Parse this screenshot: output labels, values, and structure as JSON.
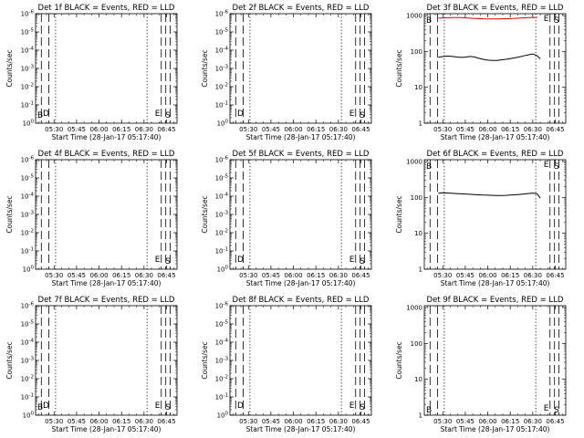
{
  "x_tick_labels": [
    "05:30",
    "05:45",
    "06:00",
    "06:15",
    "06:30",
    "06:45"
  ],
  "x_axis_label": "Start Time (28-Jan-17 05:17:40)",
  "y_axis_label": "Counts/sec",
  "markers": {
    "begin": "B",
    "dropout": "D",
    "end": "E",
    "start": "S"
  },
  "colors": {
    "events": "#000000",
    "lld": "#e00000"
  },
  "chart_data": [
    {
      "type": "line",
      "title": "Det 1f BLACK = Events, RED = LLD",
      "yscale": "log",
      "ytick_labels": [
        "10^0",
        "10^-1",
        "10^-2",
        "10^-3",
        "10^-4",
        "10^-5",
        "10^-6"
      ],
      "marks": [
        "B",
        "D",
        "E",
        "S"
      ],
      "series": []
    },
    {
      "type": "line",
      "title": "Det 2f BLACK = Events, RED = LLD",
      "yscale": "log",
      "ytick_labels": [
        "10^0",
        "10^-1",
        "10^-2",
        "10^-3",
        "10^-4",
        "10^-5",
        "10^-6"
      ],
      "marks": [
        "D",
        "E",
        "S"
      ],
      "series": []
    },
    {
      "type": "line",
      "title": "Det 3f BLACK = Events, RED = LLD",
      "yscale": "log",
      "ytick_labels": [
        "1",
        "10",
        "100",
        "1000"
      ],
      "marks": [
        "B",
        "E",
        "S"
      ],
      "series": [
        {
          "color": "#e00000",
          "x": [
            "05:27",
            "05:32",
            "05:37",
            "05:42",
            "05:47",
            "05:52",
            "05:57",
            "06:02",
            "06:07",
            "06:12",
            "06:17",
            "06:22",
            "06:27",
            "06:30",
            "06:33"
          ],
          "y": [
            840,
            860,
            880,
            870,
            850,
            830,
            810,
            800,
            805,
            815,
            830,
            850,
            870,
            880,
            890
          ]
        },
        {
          "color": "#000000",
          "x": [
            "05:27",
            "05:30",
            "05:33",
            "05:36",
            "05:39",
            "05:42",
            "05:45",
            "05:48",
            "05:51",
            "05:54",
            "05:57",
            "06:00",
            "06:03",
            "06:06",
            "06:09",
            "06:12",
            "06:15",
            "06:18",
            "06:21",
            "06:24",
            "06:27",
            "06:30",
            "06:33",
            "06:35"
          ],
          "y": [
            68,
            72,
            74,
            73,
            70,
            68,
            69,
            72,
            70,
            64,
            60,
            57,
            56,
            56,
            58,
            60,
            63,
            66,
            70,
            75,
            80,
            85,
            75,
            62
          ]
        }
      ]
    },
    {
      "type": "line",
      "title": "Det 4f BLACK = Events, RED = LLD",
      "yscale": "log",
      "ytick_labels": [
        "10^0",
        "10^-1",
        "10^-2",
        "10^-3",
        "10^-4",
        "10^-5",
        "10^-6"
      ],
      "marks": [
        "E",
        "S"
      ],
      "series": []
    },
    {
      "type": "line",
      "title": "Det 5f BLACK = Events, RED = LLD",
      "yscale": "log",
      "ytick_labels": [
        "10^0",
        "10^-1",
        "10^-2",
        "10^-3",
        "10^-4",
        "10^-5",
        "10^-6"
      ],
      "marks": [
        "D",
        "E",
        "S"
      ],
      "series": []
    },
    {
      "type": "line",
      "title": "Det 6f BLACK = Events, RED = LLD",
      "yscale": "log",
      "ytick_labels": [
        "1",
        "10",
        "100",
        "1000"
      ],
      "marks": [
        "B",
        "E",
        "S"
      ],
      "series": [
        {
          "color": "#000000",
          "x": [
            "05:27",
            "05:30",
            "05:33",
            "05:36",
            "05:39",
            "05:42",
            "05:45",
            "05:48",
            "05:51",
            "05:54",
            "05:57",
            "06:00",
            "06:03",
            "06:06",
            "06:09",
            "06:12",
            "06:15",
            "06:18",
            "06:21",
            "06:24",
            "06:27",
            "06:30",
            "06:33",
            "06:35"
          ],
          "y": [
            130,
            134,
            132,
            130,
            128,
            126,
            124,
            122,
            120,
            118,
            116,
            115,
            114,
            113,
            113,
            114,
            116,
            118,
            121,
            124,
            128,
            132,
            126,
            95
          ]
        }
      ]
    },
    {
      "type": "line",
      "title": "Det 7f BLACK = Events, RED = LLD",
      "yscale": "log",
      "ytick_labels": [
        "10^0",
        "10^-1",
        "10^-2",
        "10^-3",
        "10^-4",
        "10^-5",
        "10^-6"
      ],
      "marks": [
        "B",
        "D",
        "E",
        "S"
      ],
      "series": []
    },
    {
      "type": "line",
      "title": "Det 8f BLACK = Events, RED = LLD",
      "yscale": "log",
      "ytick_labels": [
        "10^0",
        "10^-1",
        "10^-2",
        "10^-3",
        "10^-4",
        "10^-5",
        "10^-6"
      ],
      "marks": [
        "D",
        "E",
        "S"
      ],
      "series": []
    },
    {
      "type": "line",
      "title": "Det 9f BLACK = Events, RED = LLD",
      "yscale": "log",
      "ytick_labels": [
        "1",
        "10",
        "100",
        "1000"
      ],
      "marks": [
        "B",
        "E",
        "S"
      ],
      "series": []
    }
  ]
}
